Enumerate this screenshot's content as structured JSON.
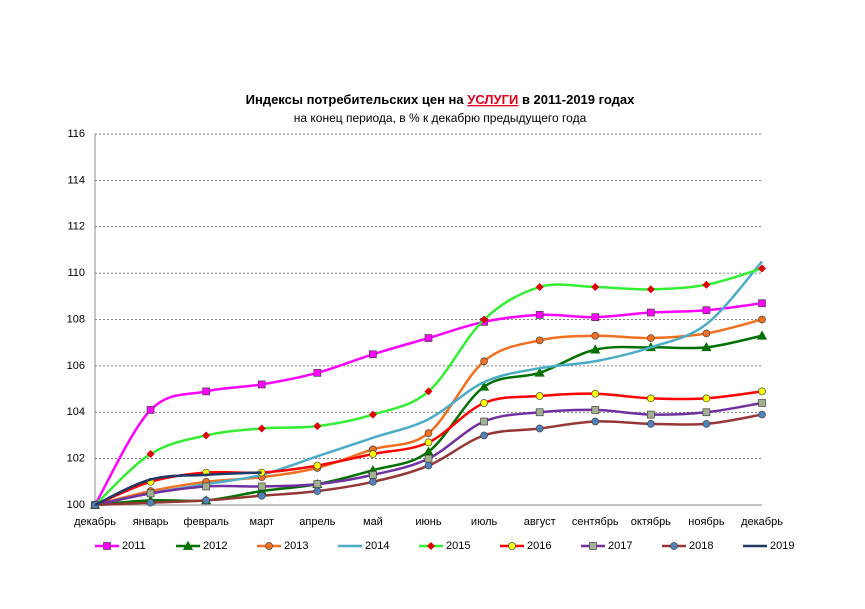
{
  "chart_data": {
    "type": "line",
    "title": {
      "before": "Индексы потребительских цен на",
      "highlight": "УСЛУГИ",
      "after": "в 2011-2019 годах"
    },
    "subtitle": "на конец периода, в % к декабрю предыдущего года",
    "categories": [
      "декабрь",
      "январь",
      "февраль",
      "март",
      "апрель",
      "май",
      "июнь",
      "июль",
      "август",
      "сентябрь",
      "октябрь",
      "ноябрь",
      "декабрь"
    ],
    "ylim": [
      100,
      116
    ],
    "yticks": [
      100,
      102,
      104,
      106,
      108,
      110,
      112,
      114,
      116
    ],
    "grid": true,
    "legend": "bottom",
    "smooth": true,
    "series": [
      {
        "name": "2011",
        "color": "#ff00ff",
        "marker": "square",
        "marker_color": "#ff00ff",
        "values": [
          100,
          104.1,
          104.9,
          105.2,
          105.7,
          106.5,
          107.2,
          107.9,
          108.2,
          108.1,
          108.3,
          108.4,
          108.7
        ]
      },
      {
        "name": "2012",
        "color": "#007000",
        "marker": "triangle",
        "marker_color": "#007000",
        "values": [
          100,
          100.2,
          100.2,
          100.6,
          100.9,
          101.5,
          102.3,
          105.1,
          105.7,
          106.7,
          106.8,
          106.8,
          107.3
        ]
      },
      {
        "name": "2013",
        "color": "#f07020",
        "marker": "circle",
        "marker_color": "#f07020",
        "values": [
          100,
          100.6,
          101.0,
          101.2,
          101.6,
          102.4,
          103.1,
          106.2,
          107.1,
          107.3,
          107.2,
          107.4,
          108.0
        ]
      },
      {
        "name": "2014",
        "color": "#4bacc6",
        "marker": "none",
        "marker_color": "#4bacc6",
        "values": [
          100,
          100.5,
          100.9,
          101.3,
          102.1,
          102.9,
          103.7,
          105.3,
          105.9,
          106.2,
          106.8,
          107.8,
          110.5
        ]
      },
      {
        "name": "2015",
        "color": "#33ee33",
        "marker": "diamond",
        "marker_color": "#e00000",
        "values": [
          100,
          102.2,
          103.0,
          103.3,
          103.4,
          103.9,
          104.9,
          108.0,
          109.4,
          109.4,
          109.3,
          109.5,
          110.2
        ]
      },
      {
        "name": "2016",
        "color": "#ff0000",
        "marker": "circle",
        "marker_color": "#ffff00",
        "values": [
          100,
          101.0,
          101.4,
          101.4,
          101.7,
          102.2,
          102.7,
          104.4,
          104.7,
          104.8,
          104.6,
          104.6,
          104.9
        ]
      },
      {
        "name": "2017",
        "color": "#7030a0",
        "marker": "square",
        "marker_color": "#a0b090",
        "values": [
          100,
          100.5,
          100.8,
          100.8,
          100.9,
          101.3,
          102.0,
          103.6,
          104.0,
          104.1,
          103.9,
          104.0,
          104.4
        ]
      },
      {
        "name": "2018",
        "color": "#953735",
        "marker": "circle",
        "marker_color": "#4f81bd",
        "values": [
          100,
          100.1,
          100.2,
          100.4,
          100.6,
          101.0,
          101.7,
          103.0,
          103.3,
          103.6,
          103.5,
          103.5,
          103.9
        ]
      },
      {
        "name": "2019",
        "color": "#1f3864",
        "marker": "none",
        "marker_color": "#1f3864",
        "values": [
          100,
          101.1,
          101.3,
          101.4,
          null,
          null,
          null,
          null,
          null,
          null,
          null,
          null,
          null
        ]
      }
    ]
  }
}
